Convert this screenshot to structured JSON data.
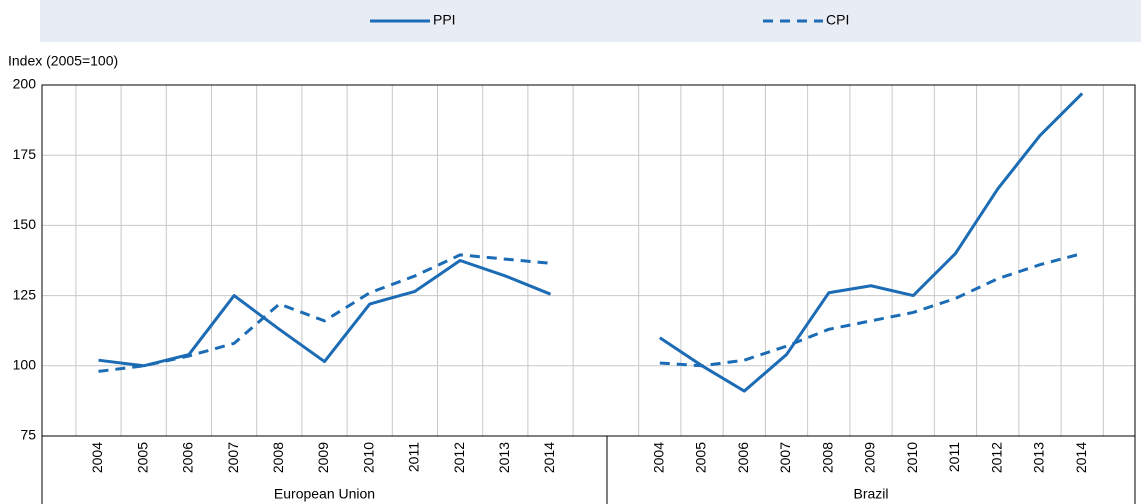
{
  "chart_data": {
    "type": "line",
    "y_label": "Index (2005=100)",
    "ylim": [
      75,
      200
    ],
    "yticks": [
      75,
      100,
      125,
      150,
      175,
      200
    ],
    "grid": true,
    "legend": "top",
    "groups": [
      {
        "label": "European Union",
        "count": 11
      },
      {
        "label": "Brazil",
        "count": 11
      }
    ],
    "categories": [
      "2004",
      "2005",
      "2006",
      "2007",
      "2008",
      "2009",
      "2010",
      "2011",
      "2012",
      "2013",
      "2014",
      "2004",
      "2005",
      "2006",
      "2007",
      "2008",
      "2009",
      "2010",
      "2011",
      "2012",
      "2013",
      "2014"
    ],
    "series": [
      {
        "name": "PPI",
        "color": "#1b6bb5",
        "dashed": false,
        "values": [
          102,
          100,
          104,
          125,
          113,
          101.5,
          122,
          126.5,
          137.5,
          132,
          125.5,
          110,
          100,
          91,
          104,
          126,
          128.5,
          125,
          140,
          163,
          182,
          197
        ]
      },
      {
        "name": "CPI",
        "color": "#1b6bb5",
        "dashed": true,
        "values": [
          98,
          100,
          103.5,
          108,
          122,
          116,
          126,
          132,
          139.5,
          138,
          136.5,
          101,
          100,
          102,
          107,
          113,
          116,
          119,
          124,
          131,
          136,
          140
        ]
      }
    ]
  }
}
